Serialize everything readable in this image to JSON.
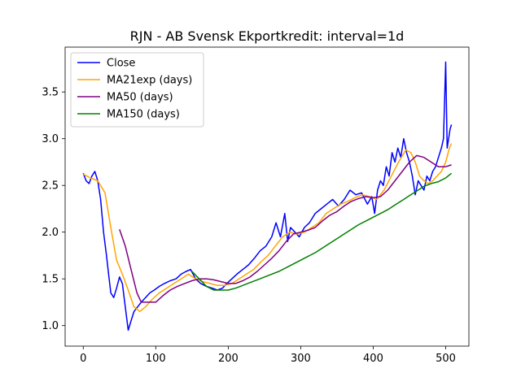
{
  "chart_data": {
    "type": "line",
    "title": "RJN - AB Svensk Ekportkredit: interval=1d",
    "xlabel": "",
    "ylabel": "",
    "xlim": [
      -25,
      532
    ],
    "ylim": [
      0.78,
      3.98
    ],
    "x_ticks": [
      0,
      100,
      200,
      300,
      400,
      500
    ],
    "x_tick_labels": [
      "0",
      "100",
      "200",
      "300",
      "400",
      "500"
    ],
    "y_ticks": [
      1.0,
      1.5,
      2.0,
      2.5,
      3.0,
      3.5
    ],
    "y_tick_labels": [
      "1.0",
      "1.5",
      "2.0",
      "2.5",
      "3.0",
      "3.5"
    ],
    "grid": false,
    "legend_position": "top-left",
    "series": [
      {
        "name": "Close",
        "color": "#0000ff",
        "x": [
          0,
          4,
          8,
          12,
          16,
          20,
          24,
          28,
          32,
          35,
          38,
          42,
          46,
          50,
          54,
          58,
          62,
          66,
          70,
          75,
          80,
          86,
          92,
          98,
          105,
          112,
          120,
          128,
          135,
          142,
          148,
          155,
          162,
          170,
          178,
          185,
          192,
          198,
          205,
          212,
          220,
          228,
          236,
          244,
          252,
          260,
          266,
          272,
          278,
          282,
          286,
          292,
          298,
          305,
          312,
          320,
          328,
          336,
          344,
          352,
          360,
          368,
          376,
          384,
          392,
          398,
          402,
          406,
          410,
          414,
          418,
          422,
          426,
          430,
          434,
          438,
          442,
          446,
          450,
          454,
          458,
          462,
          466,
          470,
          474,
          478,
          482,
          486,
          490,
          494,
          497,
          500,
          502,
          504,
          506,
          508
        ],
        "y": [
          2.63,
          2.55,
          2.52,
          2.6,
          2.65,
          2.55,
          2.35,
          2.0,
          1.75,
          1.55,
          1.35,
          1.3,
          1.4,
          1.52,
          1.45,
          1.2,
          0.95,
          1.05,
          1.15,
          1.2,
          1.25,
          1.3,
          1.35,
          1.38,
          1.42,
          1.45,
          1.48,
          1.5,
          1.55,
          1.58,
          1.6,
          1.5,
          1.45,
          1.42,
          1.4,
          1.38,
          1.4,
          1.45,
          1.5,
          1.55,
          1.6,
          1.65,
          1.72,
          1.8,
          1.85,
          1.95,
          2.1,
          1.95,
          2.2,
          1.9,
          2.05,
          2.0,
          1.95,
          2.05,
          2.1,
          2.2,
          2.25,
          2.3,
          2.35,
          2.28,
          2.35,
          2.45,
          2.4,
          2.42,
          2.3,
          2.38,
          2.2,
          2.45,
          2.55,
          2.5,
          2.7,
          2.6,
          2.85,
          2.75,
          2.9,
          2.8,
          3.0,
          2.85,
          2.75,
          2.6,
          2.4,
          2.55,
          2.5,
          2.45,
          2.6,
          2.55,
          2.65,
          2.7,
          2.8,
          2.9,
          3.0,
          3.82,
          2.9,
          3.0,
          3.1,
          3.15
        ]
      },
      {
        "name": "MA21exp (days)",
        "color": "#ffa500",
        "x": [
          0,
          10,
          20,
          30,
          38,
          46,
          54,
          62,
          70,
          78,
          86,
          95,
          105,
          115,
          125,
          135,
          145,
          155,
          165,
          175,
          185,
          195,
          205,
          215,
          225,
          235,
          245,
          255,
          265,
          275,
          285,
          295,
          305,
          315,
          325,
          335,
          345,
          355,
          365,
          375,
          385,
          395,
          405,
          415,
          425,
          435,
          445,
          452,
          458,
          464,
          470,
          476,
          482,
          488,
          494,
          500,
          505,
          508
        ],
        "y": [
          2.62,
          2.58,
          2.55,
          2.42,
          2.05,
          1.7,
          1.55,
          1.38,
          1.2,
          1.15,
          1.2,
          1.28,
          1.35,
          1.4,
          1.45,
          1.5,
          1.55,
          1.5,
          1.47,
          1.45,
          1.43,
          1.43,
          1.45,
          1.5,
          1.55,
          1.6,
          1.68,
          1.75,
          1.85,
          1.95,
          2.0,
          1.98,
          2.0,
          2.05,
          2.1,
          2.2,
          2.25,
          2.3,
          2.33,
          2.37,
          2.4,
          2.38,
          2.35,
          2.45,
          2.6,
          2.75,
          2.88,
          2.85,
          2.75,
          2.6,
          2.55,
          2.52,
          2.55,
          2.6,
          2.65,
          2.75,
          2.9,
          2.95
        ]
      },
      {
        "name": "MA50 (days)",
        "color": "#800080",
        "x": [
          50,
          58,
          66,
          74,
          80,
          90,
          100,
          110,
          120,
          130,
          140,
          150,
          160,
          170,
          180,
          190,
          200,
          210,
          220,
          230,
          240,
          250,
          260,
          270,
          280,
          290,
          300,
          310,
          320,
          330,
          340,
          350,
          360,
          370,
          380,
          390,
          400,
          410,
          420,
          430,
          440,
          450,
          460,
          470,
          480,
          490,
          500,
          508
        ],
        "y": [
          2.03,
          1.85,
          1.6,
          1.35,
          1.25,
          1.25,
          1.25,
          1.32,
          1.38,
          1.42,
          1.45,
          1.48,
          1.5,
          1.5,
          1.49,
          1.47,
          1.45,
          1.45,
          1.48,
          1.52,
          1.58,
          1.65,
          1.72,
          1.8,
          1.9,
          1.98,
          2.0,
          2.02,
          2.05,
          2.12,
          2.18,
          2.22,
          2.28,
          2.33,
          2.36,
          2.38,
          2.37,
          2.38,
          2.45,
          2.55,
          2.65,
          2.75,
          2.82,
          2.8,
          2.75,
          2.7,
          2.7,
          2.72
        ]
      },
      {
        "name": "MA150 (days)",
        "color": "#008000",
        "x": [
          150,
          160,
          170,
          180,
          190,
          200,
          210,
          220,
          230,
          240,
          250,
          260,
          270,
          280,
          290,
          300,
          310,
          320,
          330,
          340,
          350,
          360,
          370,
          380,
          390,
          400,
          410,
          420,
          430,
          440,
          450,
          460,
          470,
          480,
          490,
          500,
          508
        ],
        "y": [
          1.58,
          1.5,
          1.42,
          1.38,
          1.38,
          1.38,
          1.4,
          1.43,
          1.46,
          1.49,
          1.52,
          1.55,
          1.58,
          1.62,
          1.66,
          1.7,
          1.74,
          1.78,
          1.83,
          1.88,
          1.93,
          1.98,
          2.03,
          2.08,
          2.12,
          2.16,
          2.2,
          2.24,
          2.29,
          2.34,
          2.39,
          2.44,
          2.49,
          2.52,
          2.54,
          2.58,
          2.63
        ]
      }
    ]
  }
}
